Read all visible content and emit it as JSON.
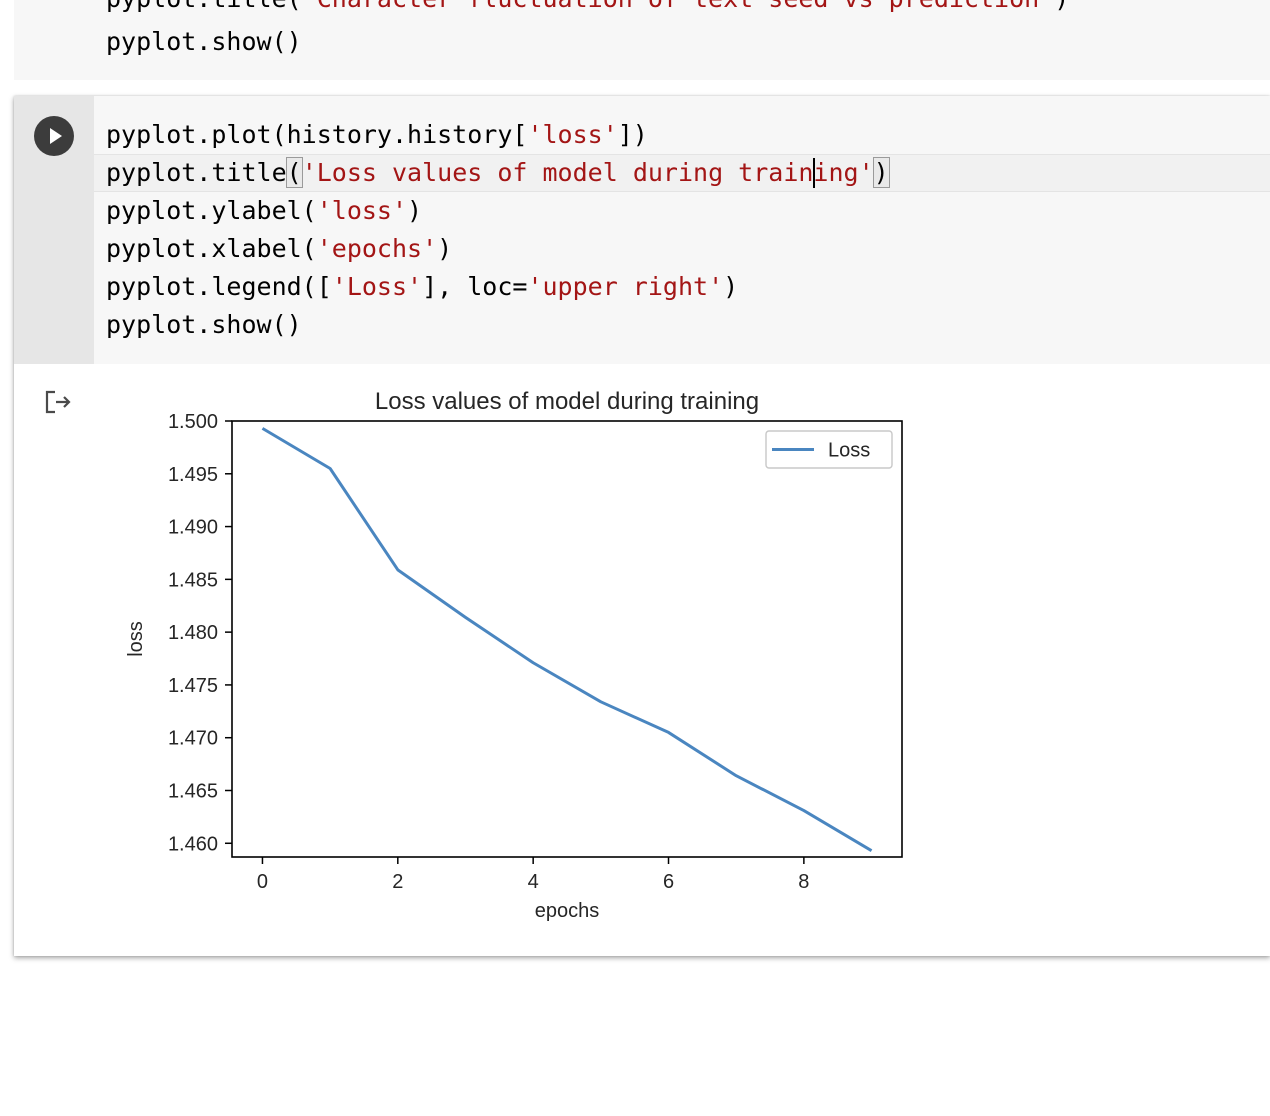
{
  "previous_cell": {
    "line_1": {
      "pre": "pyplot.title(",
      "str": "'Character fluctuation of text seed vs prediction'",
      "post": ")"
    },
    "line_2": "pyplot.show()"
  },
  "cell": {
    "run_icon": "play-icon",
    "code": [
      {
        "parts": [
          {
            "t": "pyplot.plot(history.history["
          },
          {
            "t": "'loss'",
            "s": true
          },
          {
            "t": "])"
          }
        ]
      },
      {
        "parts": [
          {
            "t": "pyplot.title"
          },
          {
            "t": "(",
            "m": true
          },
          {
            "t": "'Loss values of model during training'",
            "s": true
          },
          {
            "t": ")",
            "m": true
          }
        ]
      },
      {
        "parts": [
          {
            "t": "pyplot.ylabel("
          },
          {
            "t": "'loss'",
            "s": true
          },
          {
            "t": ")"
          }
        ]
      },
      {
        "parts": [
          {
            "t": "pyplot.xlabel("
          },
          {
            "t": "'epochs'",
            "s": true
          },
          {
            "t": ")"
          }
        ]
      },
      {
        "parts": [
          {
            "t": "pyplot.legend(["
          },
          {
            "t": "'Loss'",
            "s": true
          },
          {
            "t": "], loc="
          },
          {
            "t": "'upper right'",
            "s": true
          },
          {
            "t": ")"
          }
        ]
      },
      {
        "parts": [
          {
            "t": "pyplot.show()"
          }
        ]
      }
    ],
    "output_icon": "output-redirect-icon"
  },
  "colors": {
    "string": "#a31515",
    "line": "#4a86c0",
    "run_button": "#3c3c3c"
  },
  "chart_data": {
    "type": "line",
    "title": "Loss values of model during training",
    "xlabel": "epochs",
    "ylabel": "loss",
    "x": [
      0,
      1,
      2,
      3,
      4,
      5,
      6,
      7,
      8,
      9
    ],
    "series": [
      {
        "name": "Loss",
        "values": [
          1.4993,
          1.4955,
          1.4859,
          1.4814,
          1.4771,
          1.4734,
          1.4705,
          1.4664,
          1.4631,
          1.4593
        ]
      }
    ],
    "xlim": [
      -0.45,
      9.45
    ],
    "ylim": [
      1.4587,
      1.5
    ],
    "xticks": [
      "0",
      "2",
      "4",
      "6",
      "8"
    ],
    "yticks": [
      "1.460",
      "1.465",
      "1.470",
      "1.475",
      "1.480",
      "1.485",
      "1.490",
      "1.495",
      "1.500"
    ],
    "legend": "upper right",
    "grid": false
  }
}
